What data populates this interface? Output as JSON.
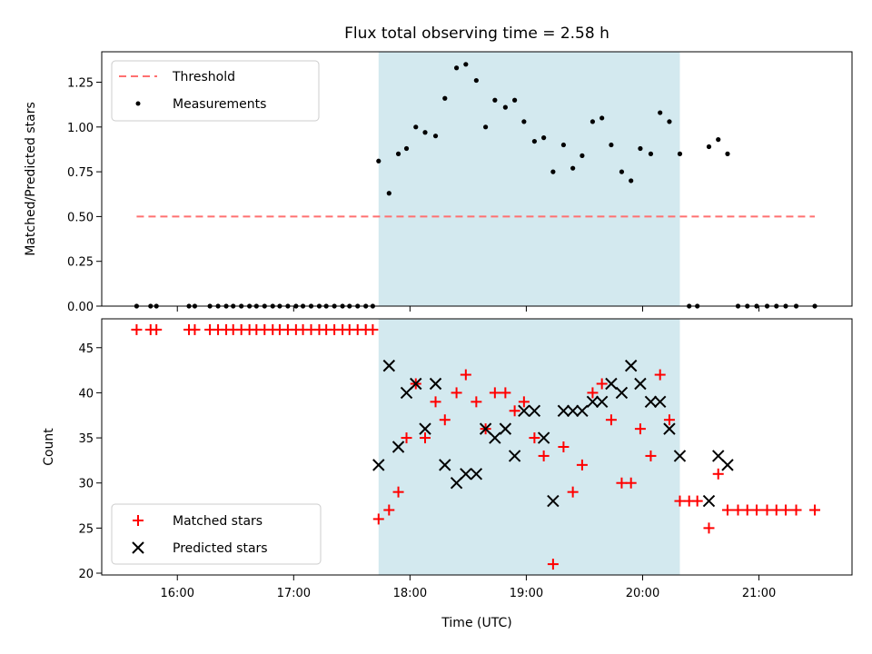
{
  "chart_data": [
    {
      "type": "scatter",
      "title": "Flux total observing time = 2.58 h",
      "xlabel": "",
      "ylabel": "Matched/Predicted stars",
      "xlim": [
        15.35,
        21.8
      ],
      "ylim": [
        0,
        1.42
      ],
      "yticks": [
        0,
        0.25,
        0.5,
        0.75,
        1.0,
        1.25
      ],
      "ytick_labels": [
        "0.00",
        "0.25",
        "0.50",
        "0.75",
        "1.00",
        "1.25"
      ],
      "shaded_span": {
        "x0": 17.73,
        "x1": 20.32,
        "color": "#d3e9ef"
      },
      "legend_position": "upper left",
      "threshold": {
        "name": "Threshold",
        "y": 0.5,
        "x": [
          15.65,
          21.48
        ],
        "color": "#ff7070",
        "style": "dashed"
      },
      "series": [
        {
          "name": "Measurements",
          "color": "#000000",
          "marker": "dot",
          "x": [
            15.65,
            15.77,
            15.82,
            16.1,
            16.15,
            16.28,
            16.35,
            16.42,
            16.48,
            16.55,
            16.62,
            16.68,
            16.75,
            16.82,
            16.88,
            16.95,
            17.02,
            17.08,
            17.15,
            17.22,
            17.28,
            17.35,
            17.42,
            17.48,
            17.55,
            17.62,
            17.68,
            17.73,
            17.82,
            17.9,
            17.97,
            18.05,
            18.13,
            18.22,
            18.3,
            18.4,
            18.48,
            18.57,
            18.65,
            18.73,
            18.82,
            18.9,
            18.98,
            19.07,
            19.15,
            19.23,
            19.32,
            19.4,
            19.48,
            19.57,
            19.65,
            19.73,
            19.82,
            19.9,
            19.98,
            20.07,
            20.15,
            20.23,
            20.32,
            20.4,
            20.47,
            20.57,
            20.65,
            20.73,
            20.82,
            20.9,
            20.98,
            21.07,
            21.15,
            21.23,
            21.32,
            21.48
          ],
          "y": [
            0,
            0,
            0,
            0,
            0,
            0,
            0,
            0,
            0,
            0,
            0,
            0,
            0,
            0,
            0,
            0,
            0,
            0,
            0,
            0,
            0,
            0,
            0,
            0,
            0,
            0,
            0,
            0.81,
            0.63,
            0.85,
            0.88,
            1.0,
            0.97,
            0.95,
            1.16,
            1.33,
            1.35,
            1.26,
            1.0,
            1.15,
            1.11,
            1.15,
            1.03,
            0.92,
            0.94,
            0.75,
            0.9,
            0.77,
            0.84,
            1.03,
            1.05,
            0.9,
            0.75,
            0.7,
            0.88,
            0.85,
            1.08,
            1.03,
            0.85,
            0,
            0,
            0.89,
            0.93,
            0.85,
            0,
            0,
            0,
            0,
            0,
            0,
            0,
            0
          ]
        }
      ]
    },
    {
      "type": "scatter",
      "title": "",
      "xlabel": "Time (UTC)",
      "ylabel": "Count",
      "xlim": [
        15.35,
        21.8
      ],
      "ylim": [
        19.8,
        48.2
      ],
      "xticks": [
        16,
        17,
        18,
        19,
        20,
        21
      ],
      "xtick_labels": [
        "16:00",
        "17:00",
        "18:00",
        "19:00",
        "20:00",
        "21:00"
      ],
      "yticks": [
        20,
        25,
        30,
        35,
        40,
        45
      ],
      "ytick_labels": [
        "20",
        "25",
        "30",
        "35",
        "40",
        "45"
      ],
      "shaded_span": {
        "x0": 17.73,
        "x1": 20.32,
        "color": "#d3e9ef"
      },
      "legend_position": "lower left",
      "series": [
        {
          "name": "Matched stars",
          "color": "#ff0000",
          "marker": "plus",
          "x": [
            15.65,
            15.77,
            15.82,
            16.1,
            16.15,
            16.28,
            16.35,
            16.42,
            16.48,
            16.55,
            16.62,
            16.68,
            16.75,
            16.82,
            16.88,
            16.95,
            17.02,
            17.08,
            17.15,
            17.22,
            17.28,
            17.35,
            17.42,
            17.48,
            17.55,
            17.62,
            17.68,
            17.73,
            17.82,
            17.9,
            17.97,
            18.05,
            18.13,
            18.22,
            18.3,
            18.4,
            18.48,
            18.57,
            18.65,
            18.73,
            18.82,
            18.9,
            18.98,
            19.07,
            19.15,
            19.23,
            19.32,
            19.4,
            19.48,
            19.57,
            19.65,
            19.73,
            19.82,
            19.9,
            19.98,
            20.07,
            20.15,
            20.23,
            20.32,
            20.4,
            20.47,
            20.57,
            20.65,
            20.73,
            20.82,
            20.9,
            20.98,
            21.07,
            21.15,
            21.23,
            21.32,
            21.48
          ],
          "y": [
            47,
            47,
            47,
            47,
            47,
            47,
            47,
            47,
            47,
            47,
            47,
            47,
            47,
            47,
            47,
            47,
            47,
            47,
            47,
            47,
            47,
            47,
            47,
            47,
            47,
            47,
            47,
            26,
            27,
            29,
            35,
            41,
            35,
            39,
            37,
            40,
            42,
            39,
            36,
            40,
            40,
            38,
            39,
            35,
            33,
            21,
            34,
            29,
            32,
            40,
            41,
            37,
            30,
            30,
            36,
            33,
            42,
            37,
            28,
            28,
            28,
            25,
            31,
            27,
            27,
            27,
            27,
            27,
            27,
            27,
            27,
            27
          ]
        },
        {
          "name": "Predicted stars",
          "color": "#000000",
          "marker": "x",
          "x": [
            17.73,
            17.82,
            17.9,
            17.97,
            18.05,
            18.13,
            18.22,
            18.3,
            18.4,
            18.48,
            18.57,
            18.65,
            18.73,
            18.82,
            18.9,
            18.98,
            19.07,
            19.15,
            19.23,
            19.32,
            19.4,
            19.48,
            19.57,
            19.65,
            19.73,
            19.82,
            19.9,
            19.98,
            20.07,
            20.15,
            20.23,
            20.32,
            20.57,
            20.65,
            20.73
          ],
          "y": [
            32,
            43,
            34,
            40,
            41,
            36,
            41,
            32,
            30,
            31,
            31,
            36,
            35,
            36,
            33,
            38,
            38,
            35,
            28,
            38,
            38,
            38,
            39,
            39,
            41,
            40,
            43,
            41,
            39,
            39,
            36,
            33,
            28,
            33,
            32
          ]
        }
      ]
    }
  ]
}
